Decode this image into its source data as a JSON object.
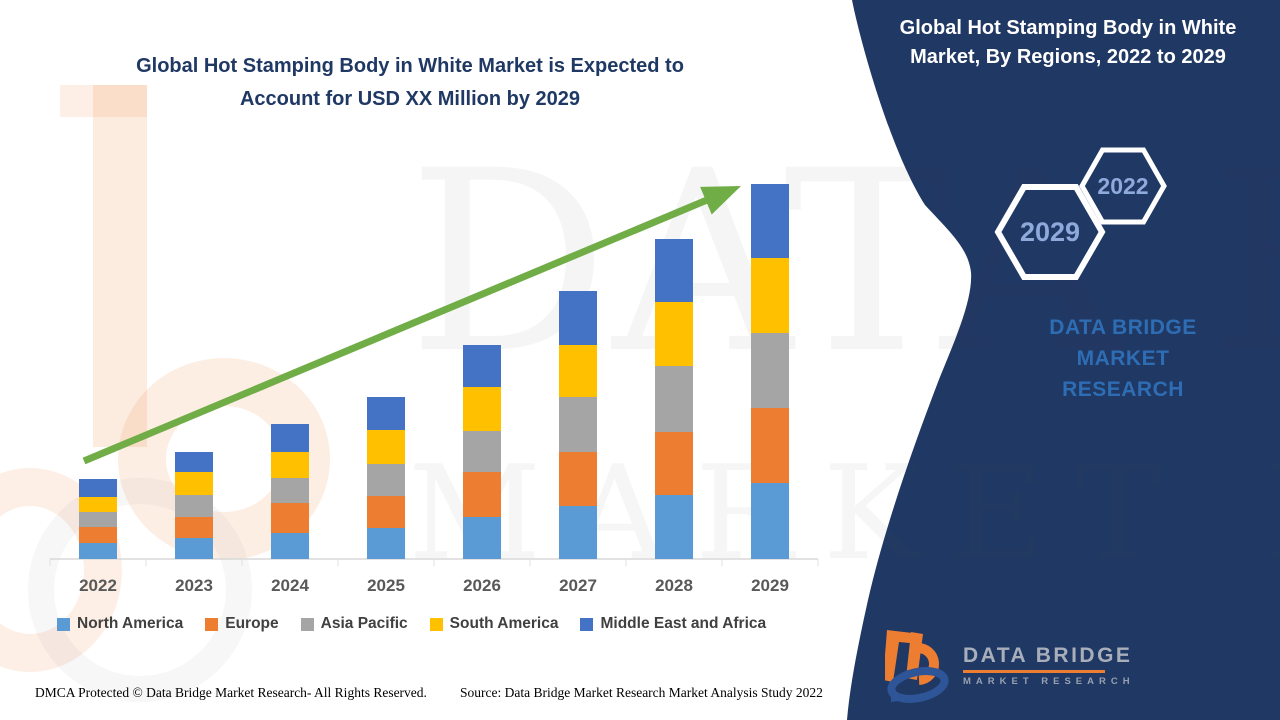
{
  "page": {
    "left_title_line1": "Global Hot Stamping Body in White Market is Expected to",
    "left_title_line2": "Account for USD XX Million by 2029"
  },
  "panel": {
    "bg_color": "#203864",
    "title_line1": "Global Hot Stamping Body in White",
    "title_line2": "Market, By Regions, 2022 to 2029",
    "hexagon_back_year": "2022",
    "hexagon_front_year": "2029",
    "hexagon_text_color": "#8EA9DB",
    "brand_text_line1": "DATA BRIDGE MARKET",
    "brand_text_line2": "RESEARCH"
  },
  "logo": {
    "name": "DATA BRIDGE",
    "subname": "MARKET RESEARCH"
  },
  "watermark": {
    "row1": "DATA BRIDGE",
    "row2": "MARKET RESEARCH"
  },
  "footer": {
    "left": "DMCA Protected © Data Bridge Market Research- All Rights Reserved.",
    "right": "Source: Data Bridge Market Research Market Analysis Study 2022"
  },
  "accents": {
    "trend_arrow_green": "#70AD47",
    "axis_gray": "#D9D9D9",
    "title_navy": "#1F3864"
  },
  "chart_data": {
    "type": "bar",
    "stacked": true,
    "title": "Global Hot Stamping Body in White Market, By Regions, 2022 to 2029",
    "xlabel": "",
    "ylabel": "",
    "y_axis_visible": false,
    "gridlines": false,
    "legend_position": "bottom",
    "value_note": "values unlabeled in source (USD XX Million); series values are relative units estimated from bar heights",
    "categories": [
      "2022",
      "2023",
      "2024",
      "2025",
      "2026",
      "2027",
      "2028",
      "2029"
    ],
    "series": [
      {
        "name": "North America",
        "color": "#5B9BD5",
        "values": [
          16,
          21,
          26,
          31,
          42,
          53,
          64,
          76
        ]
      },
      {
        "name": "Europe",
        "color": "#ED7D31",
        "values": [
          16,
          21,
          30,
          32,
          45,
          54,
          63,
          75
        ]
      },
      {
        "name": "Asia Pacific",
        "color": "#A5A5A5",
        "values": [
          15,
          22,
          25,
          32,
          41,
          55,
          66,
          75
        ]
      },
      {
        "name": "South America",
        "color": "#FFC000",
        "values": [
          15,
          23,
          26,
          34,
          44,
          52,
          64,
          75
        ]
      },
      {
        "name": "Middle East and Africa",
        "color": "#4472C4",
        "values": [
          18,
          20,
          28,
          33,
          42,
          54,
          63,
          74
        ]
      }
    ],
    "totals": [
      80,
      107,
      135,
      162,
      214,
      268,
      320,
      375
    ]
  }
}
